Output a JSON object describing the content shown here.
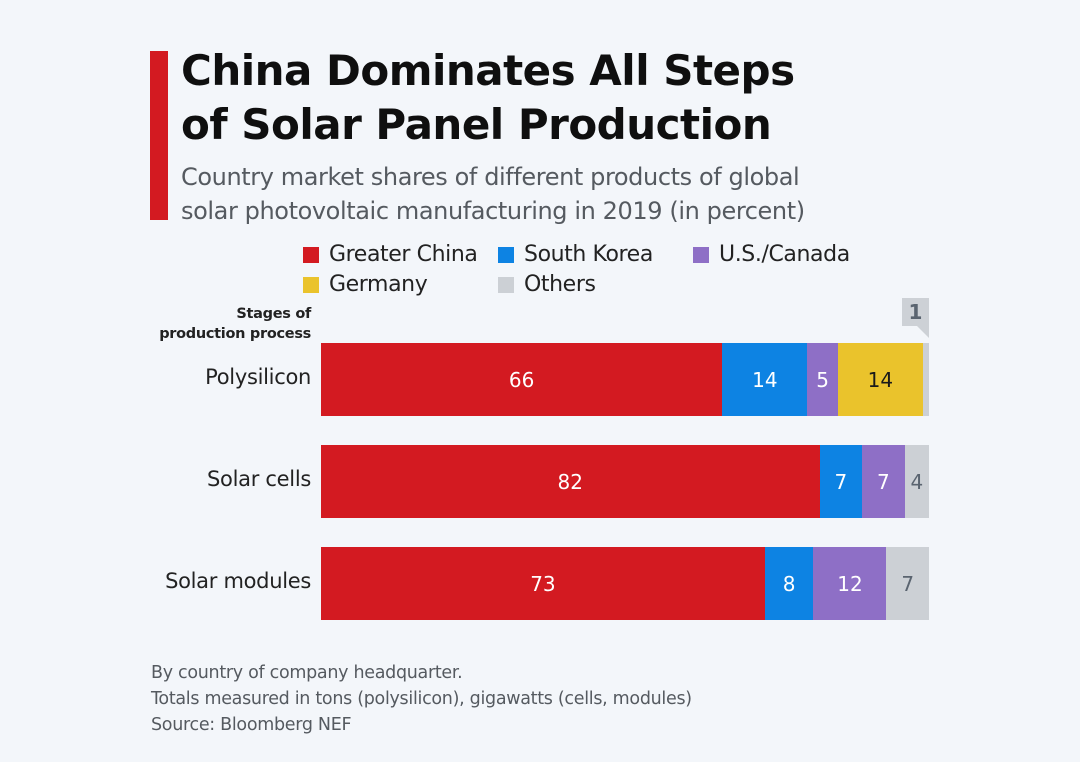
{
  "header": {
    "title_line1": "China Dominates All Steps",
    "title_line2": "of Solar Panel Production",
    "subtitle_line1": "Country market shares of different products of global",
    "subtitle_line2": "solar photovoltaic manufacturing in 2019 (in percent)",
    "accent_color": "#d31a21"
  },
  "chart_data": {
    "type": "bar",
    "orientation": "horizontal",
    "stacked": true,
    "title": "China Dominates All Steps of Solar Panel Production",
    "subtitle": "Country market shares of different products of global solar photovoltaic manufacturing in 2019 (in percent)",
    "ylabel": "Stages of production process",
    "xlabel": "",
    "xlim": [
      0,
      100
    ],
    "grid": false,
    "legend_position": "top",
    "categories": [
      "Polysilicon",
      "Solar cells",
      "Solar modules"
    ],
    "series": [
      {
        "name": "Greater China",
        "color": "#d31a21",
        "label_color": "#ffffff",
        "values": [
          66,
          82,
          73
        ]
      },
      {
        "name": "South Korea",
        "color": "#0d83e3",
        "label_color": "#ffffff",
        "values": [
          14,
          7,
          8
        ]
      },
      {
        "name": "U.S./Canada",
        "color": "#8e6fc6",
        "label_color": "#ffffff",
        "values": [
          5,
          7,
          12
        ]
      },
      {
        "name": "Germany",
        "color": "#eac32c",
        "label_color": "#1a1a1a",
        "values": [
          14,
          0,
          0
        ]
      },
      {
        "name": "Others",
        "color": "#ccd0d5",
        "label_color": "#5a6470",
        "values": [
          1,
          4,
          7
        ]
      }
    ],
    "annotations": [
      {
        "category": "Polysilicon",
        "series": "Others",
        "text": "1",
        "style": "callout"
      }
    ],
    "notes": [
      "By country of company headquarter.",
      "Totals measured in tons (polysilicon), gigawatts (cells, modules)",
      "Source: Bloomberg NEF"
    ]
  },
  "legend": {
    "items": [
      {
        "label": "Greater China",
        "color": "#d31a21"
      },
      {
        "label": "South Korea",
        "color": "#0d83e3"
      },
      {
        "label": "U.S./Canada",
        "color": "#8e6fc6"
      },
      {
        "label": "Germany",
        "color": "#eac32c"
      },
      {
        "label": "Others",
        "color": "#ccd0d5"
      }
    ]
  },
  "axis": {
    "title_line1": "Stages of",
    "title_line2": "production process"
  },
  "callout": {
    "text": "1"
  },
  "footer": {
    "note1": "By country of company headquarter.",
    "note2": "Totals measured in tons (polysilicon), gigawatts (cells, modules)",
    "source": "Source: Bloomberg NEF"
  }
}
